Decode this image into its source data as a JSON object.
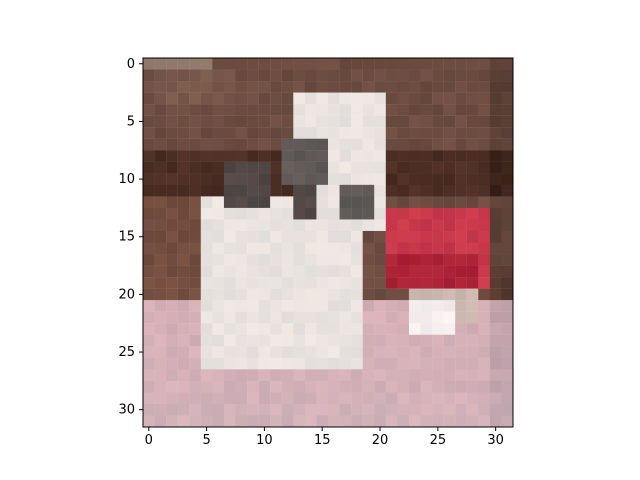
{
  "chart_data": {
    "type": "heatmap",
    "title": "",
    "xlabel": "",
    "ylabel": "",
    "x_range": [
      -0.5,
      31.5
    ],
    "y_range": [
      31.5,
      -0.5
    ],
    "x_ticks": [
      0,
      5,
      10,
      15,
      20,
      25,
      30
    ],
    "y_ticks": [
      0,
      5,
      10,
      15,
      20,
      25,
      30
    ],
    "grid": false,
    "image_description": "32x32 low-resolution pixelated photo shown with imshow",
    "approximate_regions": [
      {
        "label": "wall",
        "color": "#6b4b3f"
      },
      {
        "label": "dark stripe",
        "color": "#4a2c21"
      },
      {
        "label": "white dog body",
        "color": "#e9e3df"
      },
      {
        "label": "dog face patches",
        "color": "#5f5a57"
      },
      {
        "label": "red object",
        "color": "#c8384b"
      },
      {
        "label": "pink floor",
        "color": "#d9b4bb"
      }
    ]
  }
}
